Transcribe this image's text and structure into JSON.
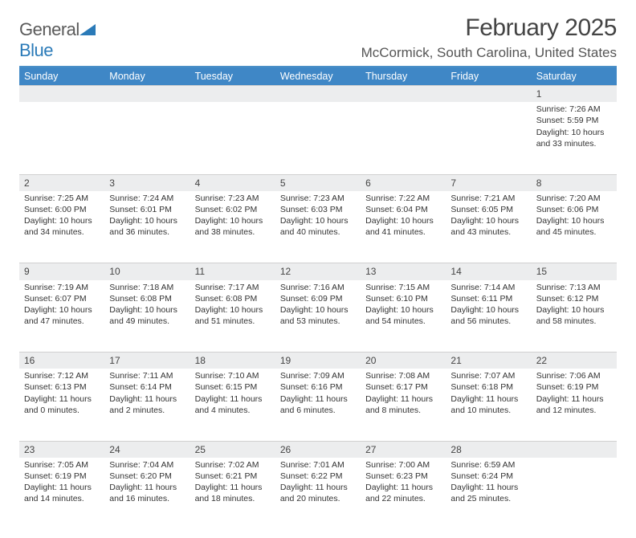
{
  "brand": {
    "name_gray": "General",
    "name_blue": "Blue"
  },
  "title": "February 2025",
  "location": "McCormick, South Carolina, United States",
  "colors": {
    "header_bar": "#3f87c6",
    "rule": "#4a8fc7",
    "daynum_bg": "#ecedee",
    "text": "#333333",
    "background": "#ffffff"
  },
  "typography": {
    "title_fontsize": 30,
    "location_fontsize": 17,
    "dayheader_fontsize": 12.5,
    "cell_fontsize": 10.5
  },
  "day_headers": [
    "Sunday",
    "Monday",
    "Tuesday",
    "Wednesday",
    "Thursday",
    "Friday",
    "Saturday"
  ],
  "weeks": [
    {
      "nums": [
        "",
        "",
        "",
        "",
        "",
        "",
        "1"
      ],
      "cells": [
        "",
        "",
        "",
        "",
        "",
        "",
        "Sunrise: 7:26 AM\nSunset: 5:59 PM\nDaylight: 10 hours and 33 minutes."
      ]
    },
    {
      "nums": [
        "2",
        "3",
        "4",
        "5",
        "6",
        "7",
        "8"
      ],
      "cells": [
        "Sunrise: 7:25 AM\nSunset: 6:00 PM\nDaylight: 10 hours and 34 minutes.",
        "Sunrise: 7:24 AM\nSunset: 6:01 PM\nDaylight: 10 hours and 36 minutes.",
        "Sunrise: 7:23 AM\nSunset: 6:02 PM\nDaylight: 10 hours and 38 minutes.",
        "Sunrise: 7:23 AM\nSunset: 6:03 PM\nDaylight: 10 hours and 40 minutes.",
        "Sunrise: 7:22 AM\nSunset: 6:04 PM\nDaylight: 10 hours and 41 minutes.",
        "Sunrise: 7:21 AM\nSunset: 6:05 PM\nDaylight: 10 hours and 43 minutes.",
        "Sunrise: 7:20 AM\nSunset: 6:06 PM\nDaylight: 10 hours and 45 minutes."
      ]
    },
    {
      "nums": [
        "9",
        "10",
        "11",
        "12",
        "13",
        "14",
        "15"
      ],
      "cells": [
        "Sunrise: 7:19 AM\nSunset: 6:07 PM\nDaylight: 10 hours and 47 minutes.",
        "Sunrise: 7:18 AM\nSunset: 6:08 PM\nDaylight: 10 hours and 49 minutes.",
        "Sunrise: 7:17 AM\nSunset: 6:08 PM\nDaylight: 10 hours and 51 minutes.",
        "Sunrise: 7:16 AM\nSunset: 6:09 PM\nDaylight: 10 hours and 53 minutes.",
        "Sunrise: 7:15 AM\nSunset: 6:10 PM\nDaylight: 10 hours and 54 minutes.",
        "Sunrise: 7:14 AM\nSunset: 6:11 PM\nDaylight: 10 hours and 56 minutes.",
        "Sunrise: 7:13 AM\nSunset: 6:12 PM\nDaylight: 10 hours and 58 minutes."
      ]
    },
    {
      "nums": [
        "16",
        "17",
        "18",
        "19",
        "20",
        "21",
        "22"
      ],
      "cells": [
        "Sunrise: 7:12 AM\nSunset: 6:13 PM\nDaylight: 11 hours and 0 minutes.",
        "Sunrise: 7:11 AM\nSunset: 6:14 PM\nDaylight: 11 hours and 2 minutes.",
        "Sunrise: 7:10 AM\nSunset: 6:15 PM\nDaylight: 11 hours and 4 minutes.",
        "Sunrise: 7:09 AM\nSunset: 6:16 PM\nDaylight: 11 hours and 6 minutes.",
        "Sunrise: 7:08 AM\nSunset: 6:17 PM\nDaylight: 11 hours and 8 minutes.",
        "Sunrise: 7:07 AM\nSunset: 6:18 PM\nDaylight: 11 hours and 10 minutes.",
        "Sunrise: 7:06 AM\nSunset: 6:19 PM\nDaylight: 11 hours and 12 minutes."
      ]
    },
    {
      "nums": [
        "23",
        "24",
        "25",
        "26",
        "27",
        "28",
        ""
      ],
      "cells": [
        "Sunrise: 7:05 AM\nSunset: 6:19 PM\nDaylight: 11 hours and 14 minutes.",
        "Sunrise: 7:04 AM\nSunset: 6:20 PM\nDaylight: 11 hours and 16 minutes.",
        "Sunrise: 7:02 AM\nSunset: 6:21 PM\nDaylight: 11 hours and 18 minutes.",
        "Sunrise: 7:01 AM\nSunset: 6:22 PM\nDaylight: 11 hours and 20 minutes.",
        "Sunrise: 7:00 AM\nSunset: 6:23 PM\nDaylight: 11 hours and 22 minutes.",
        "Sunrise: 6:59 AM\nSunset: 6:24 PM\nDaylight: 11 hours and 25 minutes.",
        ""
      ]
    }
  ]
}
